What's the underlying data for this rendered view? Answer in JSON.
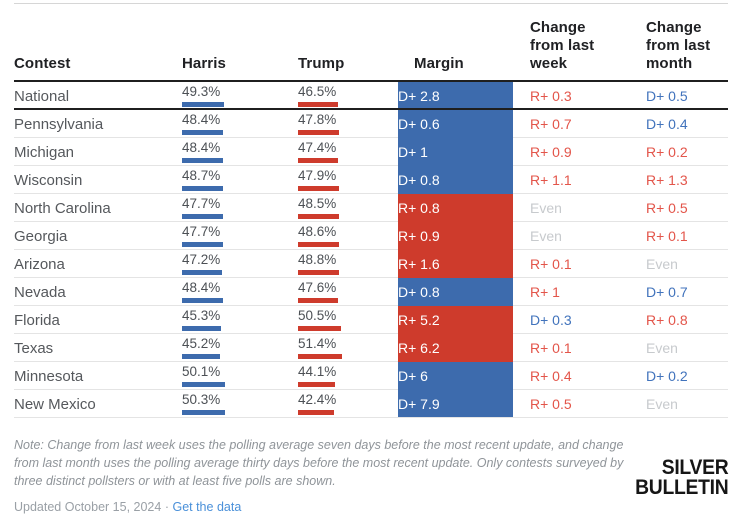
{
  "colors": {
    "dem": "#3d6bad",
    "rep": "#ce3b2c",
    "dem_text": "#4173bc",
    "rep_text": "#e3554a",
    "even_text": "#c7cacd"
  },
  "table": {
    "columns": [
      "Contest",
      "Harris",
      "Trump",
      "Margin",
      "Change from last week",
      "Change from last month"
    ],
    "rows": [
      {
        "contest": "National",
        "harris_label": "49.3%",
        "harris_value": 49.3,
        "trump_label": "46.5%",
        "trump_value": 46.5,
        "margin_label": "D+ 2.8",
        "margin_party": "D",
        "week_label": "R+ 0.3",
        "week_party": "R",
        "month_label": "D+ 0.5",
        "month_party": "D",
        "thick": true
      },
      {
        "contest": "Pennsylvania",
        "harris_label": "48.4%",
        "harris_value": 48.4,
        "trump_label": "47.8%",
        "trump_value": 47.8,
        "margin_label": "D+ 0.6",
        "margin_party": "D",
        "week_label": "R+ 0.7",
        "week_party": "R",
        "month_label": "D+ 0.4",
        "month_party": "D"
      },
      {
        "contest": "Michigan",
        "harris_label": "48.4%",
        "harris_value": 48.4,
        "trump_label": "47.4%",
        "trump_value": 47.4,
        "margin_label": "D+ 1",
        "margin_party": "D",
        "week_label": "R+ 0.9",
        "week_party": "R",
        "month_label": "R+ 0.2",
        "month_party": "R"
      },
      {
        "contest": "Wisconsin",
        "harris_label": "48.7%",
        "harris_value": 48.7,
        "trump_label": "47.9%",
        "trump_value": 47.9,
        "margin_label": "D+ 0.8",
        "margin_party": "D",
        "week_label": "R+ 1.1",
        "week_party": "R",
        "month_label": "R+ 1.3",
        "month_party": "R"
      },
      {
        "contest": "North Carolina",
        "harris_label": "47.7%",
        "harris_value": 47.7,
        "trump_label": "48.5%",
        "trump_value": 48.5,
        "margin_label": "R+ 0.8",
        "margin_party": "R",
        "week_label": "Even",
        "week_party": "E",
        "month_label": "R+ 0.5",
        "month_party": "R"
      },
      {
        "contest": "Georgia",
        "harris_label": "47.7%",
        "harris_value": 47.7,
        "trump_label": "48.6%",
        "trump_value": 48.6,
        "margin_label": "R+ 0.9",
        "margin_party": "R",
        "week_label": "Even",
        "week_party": "E",
        "month_label": "R+ 0.1",
        "month_party": "R"
      },
      {
        "contest": "Arizona",
        "harris_label": "47.2%",
        "harris_value": 47.2,
        "trump_label": "48.8%",
        "trump_value": 48.8,
        "margin_label": "R+ 1.6",
        "margin_party": "R",
        "week_label": "R+ 0.1",
        "week_party": "R",
        "month_label": "Even",
        "month_party": "E"
      },
      {
        "contest": "Nevada",
        "harris_label": "48.4%",
        "harris_value": 48.4,
        "trump_label": "47.6%",
        "trump_value": 47.6,
        "margin_label": "D+ 0.8",
        "margin_party": "D",
        "week_label": "R+ 1",
        "week_party": "R",
        "month_label": "D+ 0.7",
        "month_party": "D"
      },
      {
        "contest": "Florida",
        "harris_label": "45.3%",
        "harris_value": 45.3,
        "trump_label": "50.5%",
        "trump_value": 50.5,
        "margin_label": "R+ 5.2",
        "margin_party": "R",
        "week_label": "D+ 0.3",
        "week_party": "D",
        "month_label": "R+ 0.8",
        "month_party": "R"
      },
      {
        "contest": "Texas",
        "harris_label": "45.2%",
        "harris_value": 45.2,
        "trump_label": "51.4%",
        "trump_value": 51.4,
        "margin_label": "R+ 6.2",
        "margin_party": "R",
        "week_label": "R+ 0.1",
        "week_party": "R",
        "month_label": "Even",
        "month_party": "E"
      },
      {
        "contest": "Minnesota",
        "harris_label": "50.1%",
        "harris_value": 50.1,
        "trump_label": "44.1%",
        "trump_value": 44.1,
        "margin_label": "D+ 6",
        "margin_party": "D",
        "week_label": "R+ 0.4",
        "week_party": "R",
        "month_label": "D+ 0.2",
        "month_party": "D"
      },
      {
        "contest": "New Mexico",
        "harris_label": "50.3%",
        "harris_value": 50.3,
        "trump_label": "42.4%",
        "trump_value": 42.4,
        "margin_label": "D+ 7.9",
        "margin_party": "D",
        "week_label": "R+ 0.5",
        "week_party": "R",
        "month_label": "Even",
        "month_party": "E",
        "last": true
      }
    ]
  },
  "chart_data": {
    "type": "table",
    "columns": [
      "Contest",
      "Harris",
      "Trump",
      "Margin",
      "Change from last week",
      "Change from last month"
    ],
    "rows": [
      [
        "National",
        "49.3%",
        "46.5%",
        "D+ 2.8",
        "R+ 0.3",
        "D+ 0.5"
      ],
      [
        "Pennsylvania",
        "48.4%",
        "47.8%",
        "D+ 0.6",
        "R+ 0.7",
        "D+ 0.4"
      ],
      [
        "Michigan",
        "48.4%",
        "47.4%",
        "D+ 1",
        "R+ 0.9",
        "R+ 0.2"
      ],
      [
        "Wisconsin",
        "48.7%",
        "47.9%",
        "D+ 0.8",
        "R+ 1.1",
        "R+ 1.3"
      ],
      [
        "North Carolina",
        "47.7%",
        "48.5%",
        "R+ 0.8",
        "Even",
        "R+ 0.5"
      ],
      [
        "Georgia",
        "47.7%",
        "48.6%",
        "R+ 0.9",
        "Even",
        "R+ 0.1"
      ],
      [
        "Arizona",
        "47.2%",
        "48.8%",
        "R+ 1.6",
        "R+ 0.1",
        "Even"
      ],
      [
        "Nevada",
        "48.4%",
        "47.6%",
        "D+ 0.8",
        "R+ 1",
        "D+ 0.7"
      ],
      [
        "Florida",
        "45.3%",
        "50.5%",
        "R+ 5.2",
        "D+ 0.3",
        "R+ 0.8"
      ],
      [
        "Texas",
        "45.2%",
        "51.4%",
        "R+ 6.2",
        "R+ 0.1",
        "Even"
      ],
      [
        "Minnesota",
        "50.1%",
        "44.1%",
        "D+ 6",
        "R+ 0.4",
        "D+ 0.2"
      ],
      [
        "New Mexico",
        "50.3%",
        "42.4%",
        "D+ 7.9",
        "R+ 0.5",
        "Even"
      ]
    ],
    "legend_colors": {
      "dem_margin": "#3d6bad",
      "rep_margin": "#ce3b2c"
    }
  },
  "footer": {
    "note": "Note: Change from last week uses the polling average seven days before the most recent update, and change from last month uses the polling average thirty days before the most recent update. Only contests surveyed by three distinct pollsters or with at least five polls are shown.",
    "updated": "Updated October 15, 2024",
    "separator": "·",
    "link": "Get the data",
    "logo_line1": "SILVER",
    "logo_line2": "BULLETIN"
  }
}
